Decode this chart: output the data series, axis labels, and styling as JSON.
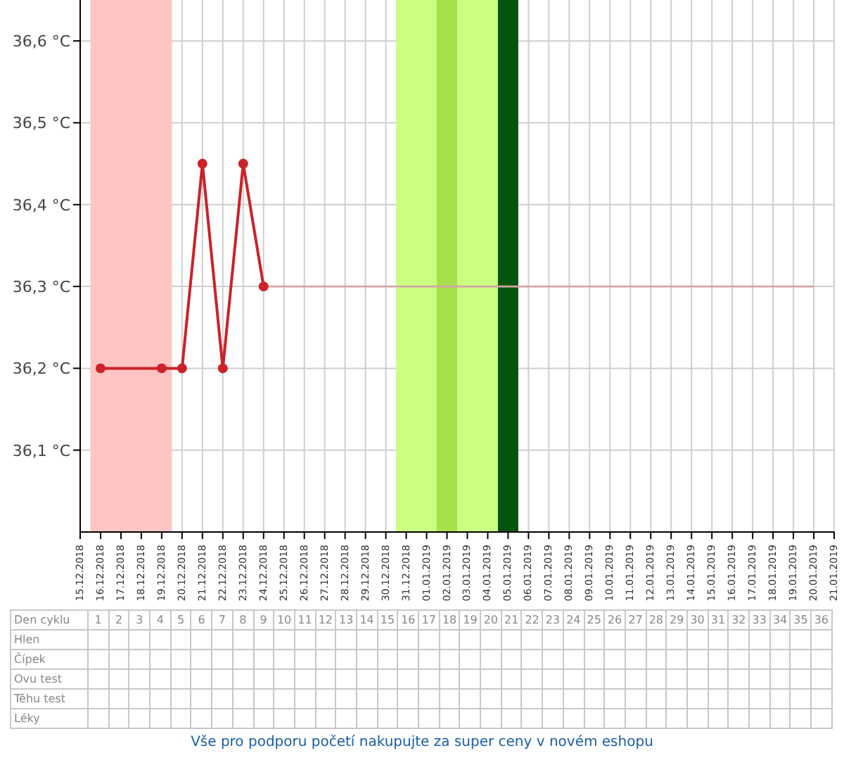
{
  "chart_data": {
    "type": "line",
    "categories": [
      "15.12.2018",
      "16.12.2018",
      "17.12.2018",
      "18.12.2018",
      "19.12.2018",
      "20.12.2018",
      "21.12.2018",
      "22.12.2018",
      "23.12.2018",
      "24.12.2018",
      "25.12.2018",
      "26.12.2018",
      "27.12.2018",
      "28.12.2018",
      "29.12.2018",
      "30.12.2018",
      "31.12.2018",
      "01.01.2019",
      "02.01.2019",
      "03.01.2019",
      "04.01.2019",
      "05.01.2019",
      "06.01.2019",
      "07.01.2019",
      "08.01.2019",
      "09.01.2019",
      "10.01.2019",
      "11.01.2019",
      "12.01.2019",
      "13.01.2019",
      "14.01.2019",
      "15.01.2019",
      "16.01.2019",
      "17.01.2019",
      "18.01.2019",
      "19.01.2019",
      "20.01.2019",
      "21.01.2019"
    ],
    "series": [
      {
        "color": "#cc2229",
        "marker": "circle",
        "values": [
          null,
          36.2,
          null,
          null,
          36.2,
          36.2,
          36.45,
          36.2,
          36.45,
          36.3,
          null,
          null,
          null,
          null,
          null,
          null,
          null,
          null,
          null,
          null,
          null,
          null,
          null,
          null,
          null,
          null,
          null,
          null,
          null,
          null,
          null,
          null,
          null,
          null,
          null,
          null,
          null,
          null
        ]
      },
      {
        "color": "#d4a5a5",
        "marker": "none",
        "values": [
          null,
          null,
          null,
          null,
          null,
          null,
          null,
          null,
          null,
          36.3,
          36.3,
          36.3,
          36.3,
          36.3,
          36.3,
          36.3,
          36.3,
          36.3,
          36.3,
          36.3,
          36.3,
          36.3,
          36.3,
          36.3,
          36.3,
          36.3,
          36.3,
          36.3,
          36.3,
          36.3,
          36.3,
          36.3,
          36.3,
          36.3,
          36.3,
          36.3,
          36.3,
          null
        ]
      }
    ],
    "ylim": [
      36.0,
      36.65
    ],
    "yticks": [
      {
        "value": 36.1,
        "label": "36,1 °C"
      },
      {
        "value": 36.2,
        "label": "36,2 °C"
      },
      {
        "value": 36.3,
        "label": "36,3 °C"
      },
      {
        "value": 36.4,
        "label": "36,4 °C"
      },
      {
        "value": 36.5,
        "label": "36,5 °C"
      },
      {
        "value": 36.6,
        "label": "36,6 °C"
      }
    ],
    "grid": true,
    "bands": [
      {
        "axis": "x",
        "from": "16.12.2018",
        "to": "19.12.2018",
        "color": "#ffc4c4"
      },
      {
        "axis": "x",
        "from": "31.12.2018",
        "to": "04.01.2019",
        "color": "#ccff80"
      },
      {
        "axis": "x",
        "from": "02.01.2019",
        "to": "02.01.2019",
        "color": "#a6e04a"
      },
      {
        "axis": "x",
        "from": "05.01.2019",
        "to": "05.01.2019",
        "color": "#03540f"
      }
    ],
    "x2lim": [
      1,
      36
    ],
    "x2ticks": [
      1,
      2,
      3,
      4,
      5,
      6,
      7,
      8,
      9,
      10,
      11,
      12,
      13,
      14,
      15,
      16,
      17,
      18,
      19,
      20,
      21,
      22,
      23,
      24,
      25,
      26,
      27,
      28,
      29,
      30,
      31,
      32,
      33,
      34,
      35,
      36
    ],
    "annotations": [
      "Den cyklu",
      "Hlen",
      "Čípek",
      "Ovu test",
      "Těhu test",
      "Léky",
      "Vše pro podporu početí nakupujte za super ceny v novém eshopu"
    ]
  }
}
